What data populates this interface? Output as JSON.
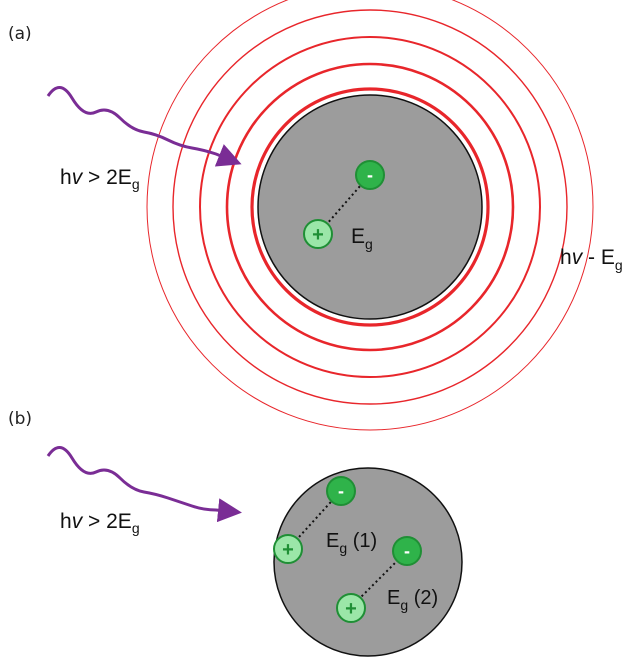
{
  "panel_a": {
    "label": "(a)",
    "photon": {
      "h": "h",
      "v": "v",
      "rel": " > 2E",
      "sub": "g"
    },
    "particle": {
      "eg_main": "E",
      "eg_sub": "g"
    },
    "minus_sign": "-",
    "plus_sign": "+",
    "emission": {
      "h": "h",
      "v": "v",
      "rest": " - E",
      "sub": "g"
    }
  },
  "panel_b": {
    "label": "(b)",
    "photon": {
      "h": "h",
      "v": "v",
      "rel": " > 2E",
      "sub": "g"
    },
    "pair1": {
      "eg_main": "E",
      "eg_sub": "g",
      "tag": " (1)"
    },
    "pair2": {
      "eg_main": "E",
      "eg_sub": "g",
      "tag": " (2)"
    },
    "minus_sign": "-",
    "plus_sign": "+"
  },
  "colors": {
    "ring": "#e8262b",
    "particle_fill": "#9c9c9c",
    "particle_stroke": "#111111",
    "photon": "#7a2d95",
    "carrier_fill": "#2fb34a",
    "carrier_plus_fill": "#9be6a8",
    "carrier_stroke": "#1f8f35"
  },
  "icons": [
    "photon-wave-icon",
    "electron-icon",
    "hole-icon"
  ]
}
